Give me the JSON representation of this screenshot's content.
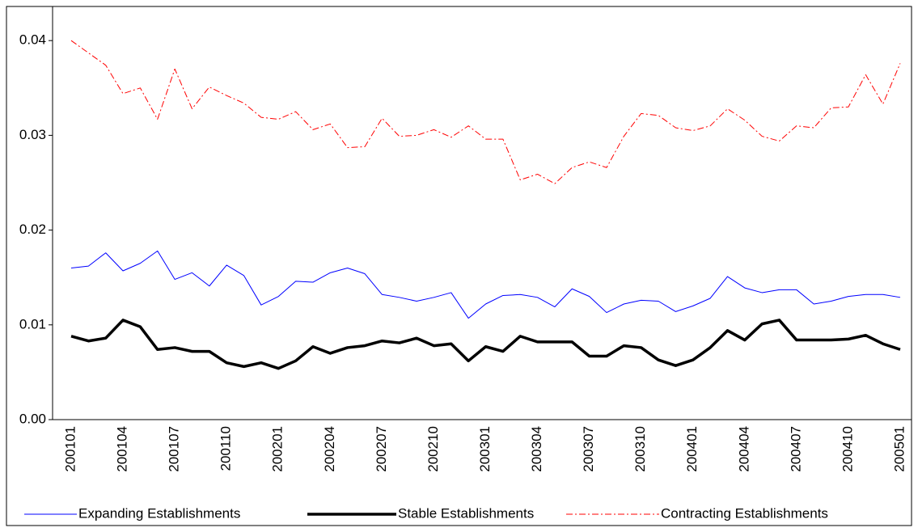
{
  "chart_data": {
    "type": "line",
    "categories": [
      "200101",
      null,
      null,
      "200104",
      null,
      null,
      "200107",
      null,
      null,
      "200110",
      null,
      null,
      "200201",
      null,
      null,
      "200204",
      null,
      null,
      "200207",
      null,
      null,
      "200210",
      null,
      null,
      "200301",
      null,
      null,
      "200304",
      null,
      null,
      "200307",
      null,
      null,
      "200310",
      null,
      null,
      "200401",
      null,
      null,
      "200404",
      null,
      null,
      "200407",
      null,
      null,
      "200410",
      null,
      null,
      "200501"
    ],
    "series": [
      {
        "name": "Expanding Establishments",
        "color": "#0000ff",
        "linestyle": "solid",
        "linewidth": 1,
        "values": [
          0.016,
          0.0162,
          0.0176,
          0.0157,
          0.0165,
          0.0178,
          0.0148,
          0.0155,
          0.0141,
          0.0163,
          0.0152,
          0.0121,
          0.013,
          0.0146,
          0.0145,
          0.0155,
          0.016,
          0.0154,
          0.0132,
          0.0129,
          0.0125,
          0.0129,
          0.0134,
          0.0107,
          0.0122,
          0.0131,
          0.0132,
          0.0129,
          0.0119,
          0.0138,
          0.013,
          0.0113,
          0.0122,
          0.0126,
          0.0125,
          0.0114,
          0.012,
          0.0128,
          0.0151,
          0.0139,
          0.0134,
          0.0137,
          0.0137,
          0.0122,
          0.0125,
          0.013,
          0.0132,
          0.0132,
          0.0129
        ]
      },
      {
        "name": "Stable Establishments",
        "color": "#000000",
        "linestyle": "solid",
        "linewidth": 3.5,
        "values": [
          0.0088,
          0.0083,
          0.0086,
          0.0105,
          0.0098,
          0.0074,
          0.0076,
          0.0072,
          0.0072,
          0.006,
          0.0056,
          0.006,
          0.0054,
          0.0062,
          0.0077,
          0.007,
          0.0076,
          0.0078,
          0.0083,
          0.0081,
          0.0086,
          0.0078,
          0.008,
          0.0062,
          0.0077,
          0.0072,
          0.0088,
          0.0082,
          0.0082,
          0.0082,
          0.0067,
          0.0067,
          0.0078,
          0.0076,
          0.0063,
          0.0057,
          0.0063,
          0.0076,
          0.0094,
          0.0084,
          0.0101,
          0.0105,
          0.0084,
          0.0084,
          0.0084,
          0.0085,
          0.0089,
          0.008,
          0.0074
        ]
      },
      {
        "name": "Contracting Establishments",
        "color": "#ff0000",
        "linestyle": "dashdot",
        "linewidth": 1,
        "values": [
          0.04,
          0.0387,
          0.0374,
          0.0344,
          0.035,
          0.0317,
          0.037,
          0.0328,
          0.0351,
          0.0342,
          0.0334,
          0.0319,
          0.0317,
          0.0325,
          0.0306,
          0.0312,
          0.0287,
          0.0288,
          0.0318,
          0.0299,
          0.03,
          0.0306,
          0.0298,
          0.031,
          0.0296,
          0.0296,
          0.0253,
          0.0259,
          0.0249,
          0.0266,
          0.0272,
          0.0266,
          0.0299,
          0.0323,
          0.0321,
          0.0308,
          0.0305,
          0.031,
          0.0328,
          0.0316,
          0.0299,
          0.0294,
          0.031,
          0.0308,
          0.0329,
          0.033,
          0.0364,
          0.0333,
          0.0376
        ]
      }
    ],
    "ylim": [
      0,
      0.0436
    ],
    "yticks": [
      {
        "value": 0,
        "label": "0.00"
      },
      0.01,
      0.02,
      0.03,
      0.04
    ],
    "legend": "bottom"
  }
}
